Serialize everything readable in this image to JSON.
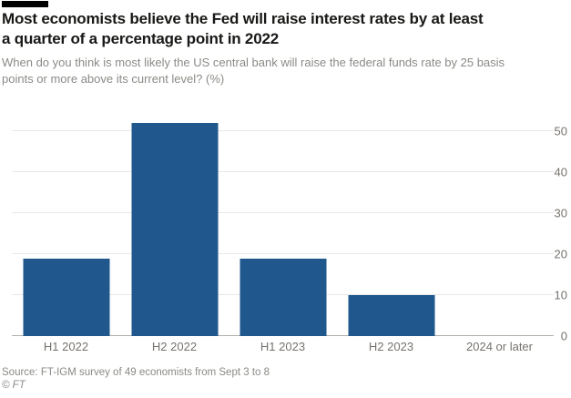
{
  "header": {
    "title_lines": [
      "Most economists believe the Fed will raise interest rates by at least",
      "a quarter of a percentage point in 2022"
    ],
    "subtitle_lines": [
      "When do you think is most likely the US central bank will raise the federal funds rate by 25 basis",
      "points or more above its current level? (%)"
    ]
  },
  "chart_data": {
    "type": "bar",
    "title": "Most economists believe the Fed will raise interest rates by at least a quarter of a percentage point in 2022",
    "subtitle": "When do you think is most likely the US central bank will raise the federal funds rate by 25 basis points or more above its current level? (%)",
    "categories": [
      "H1 2022",
      "H2 2022",
      "H1 2023",
      "H2 2023",
      "2024 or later"
    ],
    "values": [
      19,
      52,
      19,
      10,
      0
    ],
    "unit": "%",
    "xlabel": "",
    "ylabel": "%",
    "ylim": [
      0,
      52.5
    ],
    "yticks": [
      0,
      10,
      20,
      30,
      40,
      50
    ],
    "ytick_side": "right",
    "grid": true,
    "legend": false,
    "bar_color": "#20588e"
  },
  "footer": {
    "source": "Source: FT-IGM survey of 49 economists from Sept 3 to 8",
    "copyright": "© FT"
  },
  "colors": {
    "background": "#ffffff",
    "bar": "#20588e",
    "tab_black": "#000000",
    "gridline": "#eae8e4",
    "axis_line": "#b3b0aa",
    "tick_text": "#76736e",
    "muted_text": "#8b8a86",
    "title_text": "#181816"
  }
}
